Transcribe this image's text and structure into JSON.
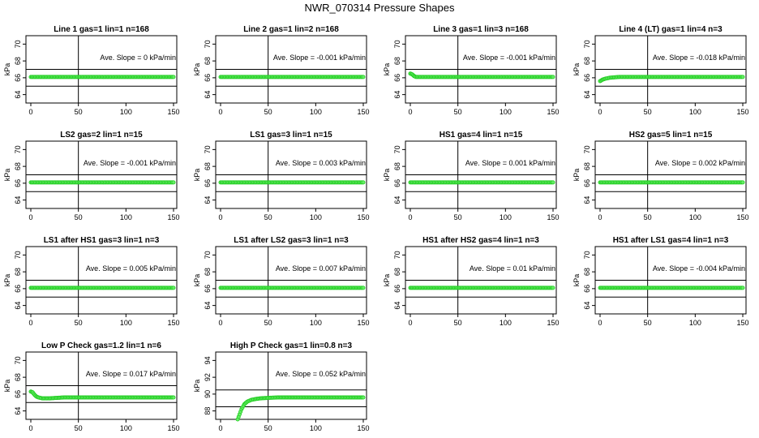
{
  "page_title": "NWR_070314  Pressure Shapes",
  "colors": {
    "points": "#22cc22",
    "points_fill": "#66ee66",
    "lines": "#000000"
  },
  "chart_data": [
    {
      "type": "scatter",
      "title": "Line 1 gas=1 lin=1 n=168",
      "ylabel": "kPa",
      "annotation": "Ave. Slope = 0  kPa/min",
      "xlim": [
        0,
        150
      ],
      "ylim": [
        63,
        71
      ],
      "x_ticks": [
        "0",
        "50",
        "100",
        "150"
      ],
      "y_ticks": [
        "64",
        "66",
        "68",
        "70"
      ],
      "hlines": [
        65,
        67
      ],
      "vline": 50,
      "series": [
        {
          "x": [
            0,
            150
          ],
          "y": [
            66.1,
            66.1
          ]
        }
      ]
    },
    {
      "type": "scatter",
      "title": "Line 2 gas=1 lin=2 n=168",
      "ylabel": "kPa",
      "annotation": "Ave. Slope = -0.001  kPa/min",
      "xlim": [
        0,
        150
      ],
      "ylim": [
        63,
        71
      ],
      "x_ticks": [
        "0",
        "50",
        "100",
        "150"
      ],
      "y_ticks": [
        "64",
        "66",
        "68",
        "70"
      ],
      "hlines": [
        65,
        67
      ],
      "vline": 50,
      "series": [
        {
          "x": [
            0,
            150
          ],
          "y": [
            66.1,
            66.1
          ]
        }
      ]
    },
    {
      "type": "scatter",
      "title": "Line 3 gas=1 lin=3 n=168",
      "ylabel": "kPa",
      "annotation": "Ave. Slope = -0.001  kPa/min",
      "xlim": [
        0,
        150
      ],
      "ylim": [
        63,
        71
      ],
      "x_ticks": [
        "0",
        "50",
        "100",
        "150"
      ],
      "y_ticks": [
        "64",
        "66",
        "68",
        "70"
      ],
      "hlines": [
        65,
        67
      ],
      "vline": 50,
      "series": [
        {
          "x": [
            0,
            2,
            4,
            6,
            150
          ],
          "y": [
            66.5,
            66.4,
            66.2,
            66.1,
            66.1
          ]
        }
      ]
    },
    {
      "type": "scatter",
      "title": "Line 4 (LT) gas=1 lin=4 n=3",
      "ylabel": "kPa",
      "annotation": "Ave. Slope = -0.018  kPa/min",
      "xlim": [
        0,
        150
      ],
      "ylim": [
        63,
        71
      ],
      "x_ticks": [
        "0",
        "50",
        "100",
        "150"
      ],
      "y_ticks": [
        "64",
        "66",
        "68",
        "70"
      ],
      "hlines": [
        65,
        67
      ],
      "vline": 50,
      "series": [
        {
          "x": [
            0,
            3,
            6,
            10,
            20,
            150
          ],
          "y": [
            65.6,
            65.8,
            65.9,
            66.0,
            66.1,
            66.1
          ]
        }
      ]
    },
    {
      "type": "scatter",
      "title": "LS2 gas=2 lin=1 n=15",
      "ylabel": "kPa",
      "annotation": "Ave. Slope = -0.001  kPa/min",
      "xlim": [
        0,
        150
      ],
      "ylim": [
        63,
        71
      ],
      "x_ticks": [
        "0",
        "50",
        "100",
        "150"
      ],
      "y_ticks": [
        "64",
        "66",
        "68",
        "70"
      ],
      "hlines": [
        65,
        67
      ],
      "vline": 50,
      "series": [
        {
          "x": [
            0,
            150
          ],
          "y": [
            66.1,
            66.1
          ]
        }
      ]
    },
    {
      "type": "scatter",
      "title": "LS1 gas=3 lin=1 n=15",
      "ylabel": "kPa",
      "annotation": "Ave. Slope = 0.003  kPa/min",
      "xlim": [
        0,
        150
      ],
      "ylim": [
        63,
        71
      ],
      "x_ticks": [
        "0",
        "50",
        "100",
        "150"
      ],
      "y_ticks": [
        "64",
        "66",
        "68",
        "70"
      ],
      "hlines": [
        65,
        67
      ],
      "vline": 50,
      "series": [
        {
          "x": [
            0,
            150
          ],
          "y": [
            66.1,
            66.1
          ]
        }
      ]
    },
    {
      "type": "scatter",
      "title": "HS1 gas=4 lin=1 n=15",
      "ylabel": "kPa",
      "annotation": "Ave. Slope = 0.001  kPa/min",
      "xlim": [
        0,
        150
      ],
      "ylim": [
        63,
        71
      ],
      "x_ticks": [
        "0",
        "50",
        "100",
        "150"
      ],
      "y_ticks": [
        "64",
        "66",
        "68",
        "70"
      ],
      "hlines": [
        65,
        67
      ],
      "vline": 50,
      "series": [
        {
          "x": [
            0,
            150
          ],
          "y": [
            66.1,
            66.1
          ]
        }
      ]
    },
    {
      "type": "scatter",
      "title": "HS2 gas=5 lin=1 n=15",
      "ylabel": "kPa",
      "annotation": "Ave. Slope = 0.002  kPa/min",
      "xlim": [
        0,
        150
      ],
      "ylim": [
        63,
        71
      ],
      "x_ticks": [
        "0",
        "50",
        "100",
        "150"
      ],
      "y_ticks": [
        "64",
        "66",
        "68",
        "70"
      ],
      "hlines": [
        65,
        67
      ],
      "vline": 50,
      "series": [
        {
          "x": [
            0,
            150
          ],
          "y": [
            66.1,
            66.1
          ]
        }
      ]
    },
    {
      "type": "scatter",
      "title": "LS1 after HS1 gas=3 lin=1 n=3",
      "ylabel": "kPa",
      "annotation": "Ave. Slope = 0.005  kPa/min",
      "xlim": [
        0,
        150
      ],
      "ylim": [
        63,
        71
      ],
      "x_ticks": [
        "0",
        "50",
        "100",
        "150"
      ],
      "y_ticks": [
        "64",
        "66",
        "68",
        "70"
      ],
      "hlines": [
        65,
        67
      ],
      "vline": 50,
      "series": [
        {
          "x": [
            0,
            150
          ],
          "y": [
            66.1,
            66.1
          ]
        }
      ]
    },
    {
      "type": "scatter",
      "title": "LS1 after LS2 gas=3 lin=1 n=3",
      "ylabel": "kPa",
      "annotation": "Ave. Slope = 0.007  kPa/min",
      "xlim": [
        0,
        150
      ],
      "ylim": [
        63,
        71
      ],
      "x_ticks": [
        "0",
        "50",
        "100",
        "150"
      ],
      "y_ticks": [
        "64",
        "66",
        "68",
        "70"
      ],
      "hlines": [
        65,
        67
      ],
      "vline": 50,
      "series": [
        {
          "x": [
            0,
            150
          ],
          "y": [
            66.1,
            66.1
          ]
        }
      ]
    },
    {
      "type": "scatter",
      "title": "HS1 after HS2 gas=4 lin=1 n=3",
      "ylabel": "kPa",
      "annotation": "Ave. Slope = 0.01  kPa/min",
      "xlim": [
        0,
        150
      ],
      "ylim": [
        63,
        71
      ],
      "x_ticks": [
        "0",
        "50",
        "100",
        "150"
      ],
      "y_ticks": [
        "64",
        "66",
        "68",
        "70"
      ],
      "hlines": [
        65,
        67
      ],
      "vline": 50,
      "series": [
        {
          "x": [
            0,
            150
          ],
          "y": [
            66.1,
            66.1
          ]
        }
      ]
    },
    {
      "type": "scatter",
      "title": "HS1 after LS1 gas=4 lin=1 n=3",
      "ylabel": "kPa",
      "annotation": "Ave. Slope = -0.004  kPa/min",
      "xlim": [
        0,
        150
      ],
      "ylim": [
        63,
        71
      ],
      "x_ticks": [
        "0",
        "50",
        "100",
        "150"
      ],
      "y_ticks": [
        "64",
        "66",
        "68",
        "70"
      ],
      "hlines": [
        65,
        67
      ],
      "vline": 50,
      "series": [
        {
          "x": [
            0,
            150
          ],
          "y": [
            66.1,
            66.1
          ]
        }
      ]
    },
    {
      "type": "scatter",
      "title": "Low P Check gas=1.2 lin=1 n=6",
      "ylabel": "kPa",
      "annotation": "Ave. Slope = 0.017  kPa/min",
      "xlim": [
        0,
        150
      ],
      "ylim": [
        63,
        71
      ],
      "x_ticks": [
        "0",
        "50",
        "100",
        "150"
      ],
      "y_ticks": [
        "64",
        "66",
        "68",
        "70"
      ],
      "hlines": [
        65,
        67
      ],
      "vline": 50,
      "series": [
        {
          "x": [
            0,
            2,
            4,
            6,
            8,
            12,
            20,
            35,
            150
          ],
          "y": [
            66.3,
            66.2,
            65.9,
            65.7,
            65.6,
            65.5,
            65.5,
            65.6,
            65.6
          ]
        }
      ]
    },
    {
      "type": "scatter",
      "title": "High P Check gas=1 lin=0.8 n=3",
      "ylabel": "kPa",
      "annotation": "Ave. Slope = 0.052  kPa/min",
      "xlim": [
        0,
        150
      ],
      "ylim": [
        87,
        95
      ],
      "x_ticks": [
        "0",
        "50",
        "100",
        "150"
      ],
      "y_ticks": [
        "88",
        "90",
        "92",
        "94"
      ],
      "hlines": [
        88.5,
        90.5
      ],
      "vline": 50,
      "series": [
        {
          "x": [
            18,
            20,
            22,
            25,
            28,
            32,
            36,
            42,
            50,
            60,
            80,
            150
          ],
          "y": [
            87,
            87.6,
            88.2,
            88.8,
            89.1,
            89.3,
            89.4,
            89.5,
            89.55,
            89.6,
            89.6,
            89.6
          ]
        }
      ]
    }
  ]
}
